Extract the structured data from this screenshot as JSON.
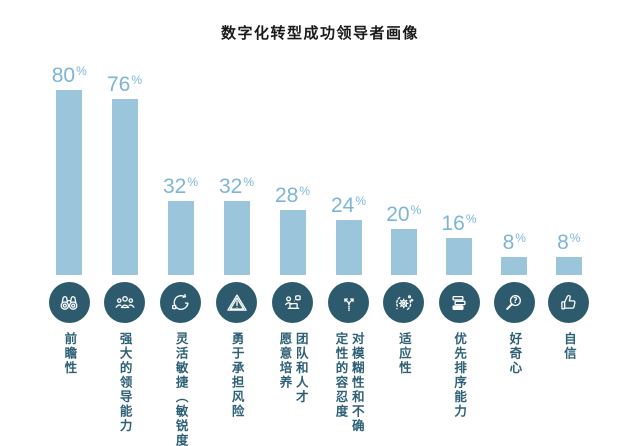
{
  "chart_data": {
    "type": "bar",
    "title": "数字化转型成功领导者画像",
    "unit": "%",
    "categories": [
      "前瞻性",
      "强大的领导能力",
      "灵活敏捷（敏锐度）",
      "勇于承担风险",
      "团队和人才\n愿意培养",
      "对模糊性和不确\n定性的容忍度",
      "适应性",
      "优先排序能力",
      "好奇心",
      "自信"
    ],
    "values": [
      80,
      76,
      32,
      32,
      28,
      24,
      20,
      16,
      8,
      8
    ],
    "icons": [
      "binoculars-icon",
      "leadership-team-icon",
      "agile-cycle-icon",
      "risk-warning-icon",
      "talent-development-icon",
      "direction-fork-icon",
      "adaptability-gear-icon",
      "prioritization-list-icon",
      "curiosity-magnifier-icon",
      "confidence-thumbs-up-icon"
    ],
    "xlabel": "",
    "ylabel": "",
    "ylim": [
      0,
      100
    ],
    "grid": false,
    "axes_visible": false,
    "legend": false,
    "value_label_position": "above-bars",
    "colors": {
      "bar": "#9ac5da",
      "value_text": "#7cb5d6",
      "icon_circle": "#2d5b6d",
      "category_text": "#2e6076",
      "title_text": "#1a1a1a",
      "background": "#ffffff"
    }
  }
}
